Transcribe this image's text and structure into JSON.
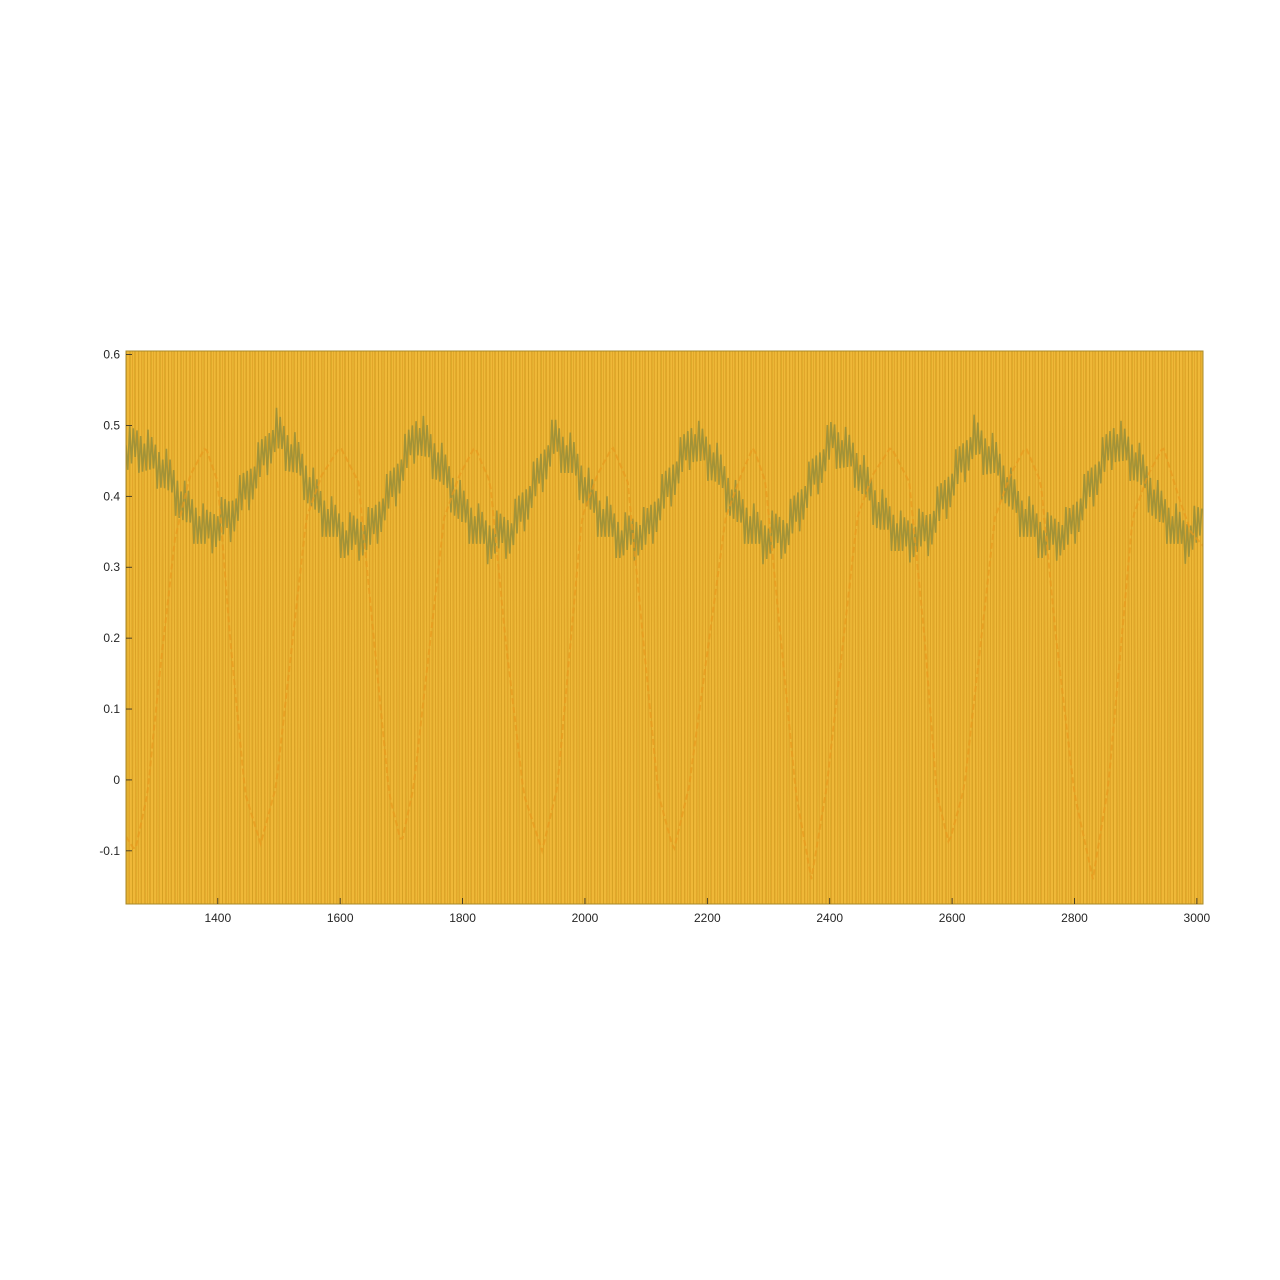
{
  "chart_data": {
    "type": "line",
    "title": "",
    "xlabel": "",
    "ylabel": "",
    "xlim": [
      1250,
      3010
    ],
    "ylim": [
      -0.175,
      0.605
    ],
    "xticks": [
      1400,
      1600,
      1800,
      2000,
      2200,
      2400,
      2600,
      2800,
      3000
    ],
    "xtick_labels": [
      "1400",
      "1600",
      "1800",
      "2000",
      "2200",
      "2400",
      "2600",
      "2800",
      "3000"
    ],
    "yticks": [
      -0.1,
      0,
      0.1,
      0.2,
      0.3,
      0.4,
      0.5,
      0.6
    ],
    "ytick_labels": [
      "-0.1",
      "0",
      "0.1",
      "0.2",
      "0.3",
      "0.4",
      "0.5",
      "0.6"
    ],
    "grid": false,
    "legend": false,
    "colors": {
      "fill": "#edb531",
      "band": "#c99a1e",
      "band_dark": "#8c8a3b",
      "dip": "#e89a1e",
      "axis": "#262626"
    },
    "series": [
      {
        "style": "dense vertical oscillation filling the full y-range",
        "x": [
          1250,
          3010
        ],
        "y": [
          -0.175,
          0.605
        ]
      },
      {
        "style": "green-olive upper envelope",
        "x": [
          1250,
          1270,
          1310,
          1350,
          1380,
          1420,
          1460,
          1495,
          1530,
          1570,
          1610,
          1650,
          1690,
          1725,
          1760,
          1800,
          1840,
          1880,
          1920,
          1950,
          1980,
          2020,
          2060,
          2100,
          2140,
          2175,
          2210,
          2250,
          2290,
          2330,
          2370,
          2405,
          2440,
          2480,
          2520,
          2560,
          2600,
          2635,
          2670,
          2710,
          2750,
          2790,
          2830,
          2865,
          2900,
          2940,
          2980,
          3010
        ],
        "y": [
          0.46,
          0.47,
          0.44,
          0.38,
          0.35,
          0.37,
          0.43,
          0.49,
          0.45,
          0.38,
          0.34,
          0.35,
          0.42,
          0.49,
          0.45,
          0.38,
          0.34,
          0.35,
          0.42,
          0.48,
          0.45,
          0.38,
          0.34,
          0.35,
          0.42,
          0.48,
          0.45,
          0.38,
          0.34,
          0.35,
          0.42,
          0.48,
          0.45,
          0.38,
          0.34,
          0.35,
          0.42,
          0.48,
          0.45,
          0.38,
          0.34,
          0.35,
          0.42,
          0.48,
          0.45,
          0.38,
          0.34,
          0.36
        ]
      },
      {
        "style": "orange lower envelope",
        "x": [
          1250,
          1265,
          1285,
          1305,
          1330,
          1355,
          1380,
          1400,
          1420,
          1445,
          1470,
          1495,
          1520,
          1545,
          1570,
          1600,
          1630,
          1655,
          1680,
          1700,
          1720,
          1745,
          1770,
          1795,
          1820,
          1845,
          1870,
          1900,
          1930,
          1955,
          1975,
          1995,
          2020,
          2045,
          2070,
          2095,
          2120,
          2145,
          2170,
          2200,
          2230,
          2255,
          2275,
          2295,
          2320,
          2345,
          2370,
          2395,
          2420,
          2445,
          2470,
          2500,
          2530,
          2555,
          2575,
          2595,
          2620,
          2645,
          2670,
          2695,
          2720,
          2745,
          2770,
          2800,
          2830,
          2855,
          2875,
          2895,
          2920,
          2945,
          2970,
          2990,
          3010
        ],
        "y": [
          -0.08,
          -0.1,
          -0.02,
          0.15,
          0.34,
          0.43,
          0.47,
          0.42,
          0.2,
          -0.02,
          -0.09,
          -0.01,
          0.18,
          0.37,
          0.43,
          0.47,
          0.42,
          0.2,
          -0.02,
          -0.09,
          -0.01,
          0.18,
          0.37,
          0.43,
          0.47,
          0.42,
          0.2,
          -0.02,
          -0.1,
          -0.01,
          0.18,
          0.37,
          0.43,
          0.47,
          0.42,
          0.2,
          -0.02,
          -0.1,
          -0.01,
          0.18,
          0.37,
          0.43,
          0.47,
          0.42,
          0.2,
          -0.02,
          -0.14,
          -0.01,
          0.18,
          0.37,
          0.43,
          0.47,
          0.42,
          0.2,
          -0.02,
          -0.09,
          -0.01,
          0.18,
          0.37,
          0.43,
          0.47,
          0.42,
          0.2,
          -0.02,
          -0.14,
          -0.01,
          0.18,
          0.37,
          0.43,
          0.47,
          0.4,
          0.35,
          0.33
        ]
      }
    ]
  }
}
